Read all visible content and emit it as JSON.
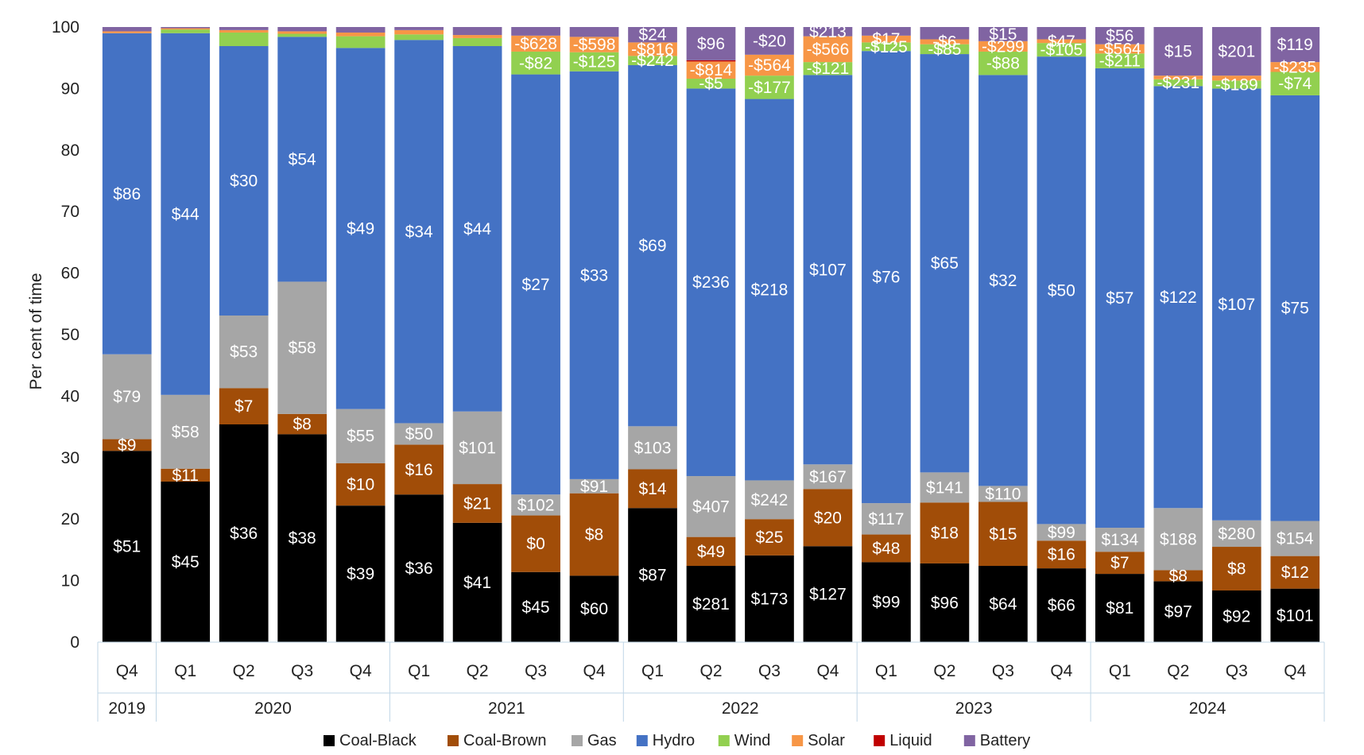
{
  "chart_data": {
    "type": "bar",
    "stacked": true,
    "title": "",
    "ylabel": "Per cent of time",
    "xlabel": "",
    "ylim": [
      0,
      100
    ],
    "yticks": [
      0,
      10,
      20,
      30,
      40,
      50,
      60,
      70,
      80,
      90,
      100
    ],
    "grid": false,
    "legend_position": "bottom",
    "categories": [
      "Q4",
      "Q1",
      "Q2",
      "Q3",
      "Q4",
      "Q1",
      "Q2",
      "Q3",
      "Q4",
      "Q1",
      "Q2",
      "Q3",
      "Q4",
      "Q1",
      "Q2",
      "Q3",
      "Q4",
      "Q1",
      "Q2",
      "Q3",
      "Q4"
    ],
    "year_groups": [
      {
        "label": "2019",
        "count": 1
      },
      {
        "label": "2020",
        "count": 4
      },
      {
        "label": "2021",
        "count": 4
      },
      {
        "label": "2022",
        "count": 4
      },
      {
        "label": "2023",
        "count": 4
      },
      {
        "label": "2024",
        "count": 4
      }
    ],
    "series": [
      {
        "name": "Coal-Black",
        "color": "#000000",
        "text_color": "#ffffff",
        "values": [
          31.1,
          26.1,
          35.4,
          33.8,
          22.2,
          24.0,
          19.4,
          11.4,
          10.8,
          21.8,
          12.4,
          14.1,
          15.6,
          13.0,
          12.8,
          12.4,
          12.0,
          11.1,
          9.9,
          8.4,
          8.7
        ],
        "labels": [
          "$51",
          "$45",
          "$36",
          "$38",
          "$39",
          "$36",
          "$41",
          "$45",
          "$60",
          "$87",
          "$281",
          "$173",
          "$127",
          "$99",
          "$96",
          "$64",
          "$66",
          "$81",
          "$97",
          "$92",
          "$101"
        ]
      },
      {
        "name": "Coal-Brown",
        "color": "#A14D08",
        "text_color": "#ffffff",
        "values": [
          1.9,
          2.1,
          5.9,
          3.3,
          6.9,
          8.1,
          6.3,
          9.2,
          13.4,
          6.3,
          4.7,
          5.9,
          9.3,
          4.5,
          9.9,
          10.4,
          4.5,
          3.6,
          1.8,
          7.1,
          5.3
        ],
        "labels": [
          "$9",
          "$11",
          "$7",
          "$8",
          "$10",
          "$16",
          "$21",
          "$0",
          "$8",
          "$14",
          "$49",
          "$25",
          "$20",
          "$48",
          "$18",
          "$15",
          "$16",
          "$7",
          "$8",
          "$8",
          "$12"
        ]
      },
      {
        "name": "Gas",
        "color": "#A6A6A6",
        "text_color": "#ffffff",
        "values": [
          13.8,
          12.0,
          11.8,
          21.5,
          8.8,
          3.5,
          11.8,
          3.4,
          2.3,
          7.0,
          9.9,
          6.3,
          4.0,
          5.1,
          4.9,
          2.6,
          2.7,
          3.9,
          10.1,
          4.3,
          5.7
        ],
        "labels": [
          "$79",
          "$58",
          "$53",
          "$58",
          "$55",
          "$50",
          "$101",
          "$102",
          "$91",
          "$103",
          "$407",
          "$242",
          "$167",
          "$117",
          "$141",
          "$110",
          "$99",
          "$134",
          "$188",
          "$280",
          "$154"
        ]
      },
      {
        "name": "Hydro",
        "color": "#4472C4",
        "text_color": "#ffffff",
        "values": [
          52.2,
          58.8,
          43.8,
          39.8,
          58.7,
          62.3,
          59.4,
          68.3,
          66.3,
          58.7,
          63.0,
          62.0,
          63.3,
          73.5,
          68.0,
          66.8,
          76.0,
          74.7,
          68.6,
          70.2,
          69.2
        ],
        "labels": [
          "$86",
          "$44",
          "$30",
          "$54",
          "$49",
          "$34",
          "$44",
          "$27",
          "$33",
          "$69",
          "$236",
          "$218",
          "$107",
          "$76",
          "$65",
          "$32",
          "$50",
          "$57",
          "$122",
          "$107",
          "$75"
        ]
      },
      {
        "name": "Wind",
        "color": "#92D050",
        "text_color": "#ffffff",
        "values": [
          0.0,
          0.6,
          2.2,
          0.5,
          1.9,
          0.9,
          1.3,
          3.7,
          3.1,
          1.5,
          1.6,
          3.8,
          2.1,
          1.4,
          1.6,
          3.8,
          2.2,
          2.4,
          1.1,
          1.3,
          3.8
        ],
        "labels": [
          "",
          "",
          "",
          "",
          "",
          "",
          "",
          "-$82",
          "-$125",
          "-$242",
          "-$5",
          "-$177",
          "-$121",
          "-$125",
          "-$85",
          "-$88",
          "-$105",
          "-$211",
          "-$231",
          "-$189",
          "-$74"
        ]
      },
      {
        "name": "Solar",
        "color": "#F79646",
        "text_color": "#ffffff",
        "values": [
          0.3,
          0.2,
          0.4,
          0.4,
          0.6,
          0.7,
          0.5,
          2.6,
          2.5,
          2.2,
          2.8,
          3.4,
          4.2,
          1.1,
          0.8,
          1.7,
          0.6,
          1.5,
          0.6,
          0.8,
          1.6
        ],
        "labels": [
          "",
          "",
          "",
          "",
          "",
          "",
          "",
          "-$628",
          "-$598",
          "-$816",
          "-$814",
          "-$564",
          "-$566",
          "$17",
          "-$6",
          "-$299",
          "$47",
          "-$564",
          "",
          "",
          "-$235"
        ]
      },
      {
        "name": "Liquid",
        "color": "#C00000",
        "text_color": "#ffffff",
        "values": [
          0,
          0,
          0,
          0,
          0,
          0,
          0,
          0,
          0,
          0,
          0.2,
          0,
          0,
          0,
          0,
          0,
          0,
          0,
          0,
          0,
          0
        ],
        "labels": [
          "",
          "",
          "",
          "",
          "",
          "",
          "",
          "",
          "",
          "",
          "",
          "",
          "",
          "",
          "",
          "",
          "",
          "",
          "",
          "",
          ""
        ]
      },
      {
        "name": "Battery",
        "color": "#8064A2",
        "text_color": "#ffffff",
        "values": [
          0.7,
          0.2,
          0.5,
          0.7,
          0.9,
          0.5,
          1.3,
          1.4,
          1.6,
          2.5,
          5.4,
          4.5,
          1.5,
          1.4,
          2.0,
          2.3,
          2.0,
          2.8,
          7.9,
          7.9,
          5.7
        ],
        "labels": [
          "",
          "",
          "",
          "",
          "",
          "",
          "",
          "",
          "",
          "$24",
          "$96",
          "-$20",
          "$213",
          "",
          "",
          "$15",
          "",
          "$56",
          "$15",
          "$201",
          "$119"
        ]
      }
    ]
  }
}
